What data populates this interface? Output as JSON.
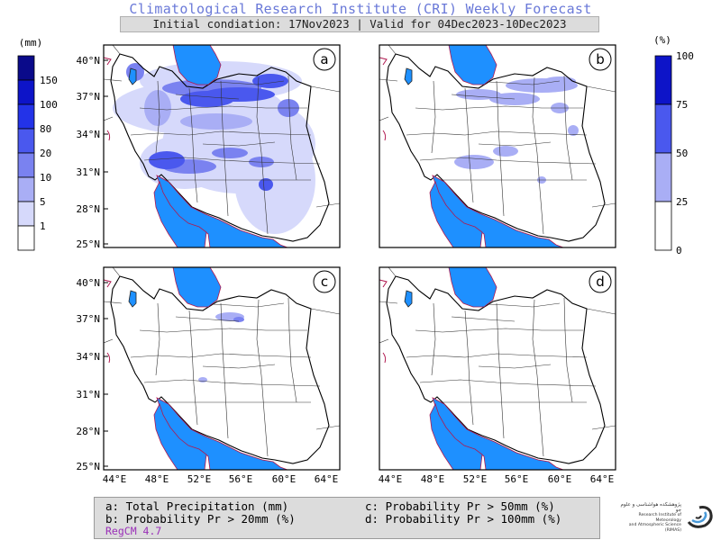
{
  "header": {
    "title": "Climatological Research Institute (CRI) Weekly Forecast",
    "subtitle": "Initial condiation: 17Nov2023 | Valid for 04Dec2023-10Dec2023"
  },
  "panels": [
    {
      "label": "a",
      "content": "Total Precipitation (mm)"
    },
    {
      "label": "b",
      "content": "Probability Pr > 20mm (%)"
    },
    {
      "label": "c",
      "content": "Probability Pr > 50mm (%)"
    },
    {
      "label": "d",
      "content": "Probability Pr > 100mm (%)"
    }
  ],
  "axes": {
    "lat_ticks": [
      "40°N",
      "37°N",
      "34°N",
      "31°N",
      "28°N",
      "25°N"
    ],
    "lon_ticks": [
      "44°E",
      "48°E",
      "52°E",
      "56°E",
      "60°E",
      "64°E"
    ]
  },
  "left_colorbar": {
    "unit": "(mm)",
    "labels": [
      "150",
      "100",
      "80",
      "20",
      "10",
      "5",
      "1"
    ],
    "colors": [
      "#0a0a8a",
      "#0d14c8",
      "#2333e8",
      "#4a58ee",
      "#7a82f0",
      "#a9aef5",
      "#d6d9fb",
      "#ffffff"
    ]
  },
  "right_colorbar": {
    "unit": "(%)",
    "labels": [
      "100",
      "75",
      "50",
      "25",
      "0"
    ],
    "colors": [
      "#0d14c8",
      "#4a58ee",
      "#a9aef5",
      "#ffffff"
    ]
  },
  "legend": {
    "a": "a: Total Precipitation (mm)",
    "b": "b: Probability Pr > 20mm (%)",
    "c": "c: Probability Pr > 50mm (%)",
    "d": "d: Probability Pr > 100mm (%)",
    "model": "RegCM 4.7"
  },
  "logo": {
    "line1": "پژوهشکده هواشناسی و علوم جو",
    "line2": "Research Institute of Meteorology",
    "line3": "and Atmospheric Science (RIMAS)"
  },
  "colors": {
    "water": "#1e90ff",
    "coast": "#b0184f",
    "border": "#000000",
    "title": "#6a79d8"
  }
}
